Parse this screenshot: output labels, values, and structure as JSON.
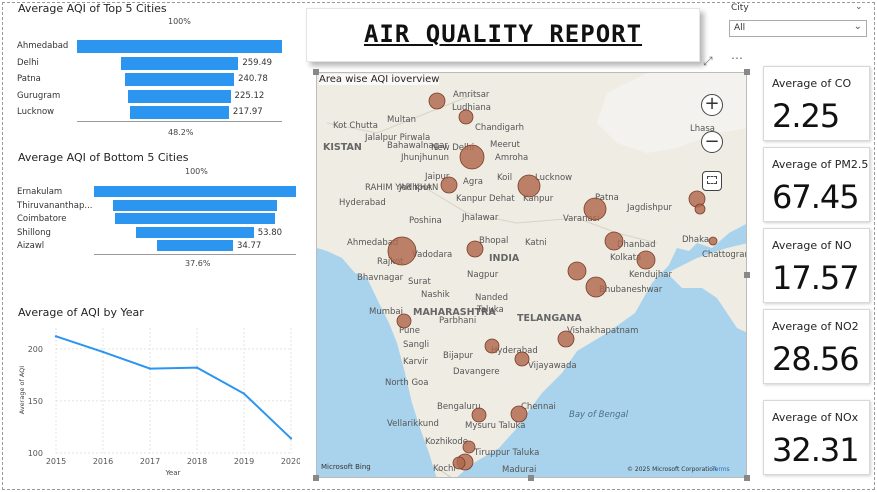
{
  "report_title": "AIR QUALITY REPORT",
  "top5": {
    "title": "Average AQI of Top 5 Cities",
    "top_pct": "100%",
    "bottom_pct": "48.2%",
    "items": [
      {
        "city": "Ahmedabad",
        "value": 452.12,
        "label": ""
      },
      {
        "city": "Delhi",
        "value": 259.49,
        "label": "259.49"
      },
      {
        "city": "Patna",
        "value": 240.78,
        "label": "240.78"
      },
      {
        "city": "Gurugram",
        "value": 225.12,
        "label": "225.12"
      },
      {
        "city": "Lucknow",
        "value": 217.97,
        "label": "217.97"
      }
    ]
  },
  "bottom5": {
    "title": "Average AQI of Bottom 5 Cities",
    "top_pct": "100%",
    "bottom_pct": "37.6%",
    "items": [
      {
        "city": "Ernakulam",
        "value": 92.5,
        "label": ""
      },
      {
        "city": "Thiruvananthap...",
        "value": 75.5,
        "label": ""
      },
      {
        "city": "Coimbatore",
        "value": 73.3,
        "label": ""
      },
      {
        "city": "Shillong",
        "value": 53.8,
        "label": "53.80"
      },
      {
        "city": "Aizawl",
        "value": 34.77,
        "label": "34.77"
      }
    ]
  },
  "chart_data": {
    "type": "line",
    "title": "Average of AQI by Year",
    "xlabel": "Year",
    "ylabel": "Average of AQI",
    "x": [
      2015,
      2016,
      2017,
      2018,
      2019,
      2020
    ],
    "values": [
      212,
      197,
      181,
      182,
      157,
      114
    ],
    "ylim": [
      100,
      220
    ],
    "yticks": [
      100,
      150,
      200
    ],
    "color": "#2b95f0"
  },
  "map": {
    "title": "Area wise AQI ioverview",
    "copyright": "© 2025 Microsoft Corporation",
    "terms": "Terms",
    "logo": "Microsoft Bing",
    "zoom_in": "+",
    "zoom_out": "−",
    "labels": {
      "amritsar": "Amritsar",
      "ludhiana": "Ludhiana",
      "kotkhata": "Kot Chutta",
      "multan": "Multan",
      "jalalpur": "Jalalpur Pirwala",
      "chandigarh": "Chandigarh",
      "meerut": "Meerut",
      "newdelhi": "New Delhi",
      "lhasa": "Lhasa",
      "kistan": "KISTAN",
      "bahawalnagar": "Bahawalnagar",
      "jhunjhunun": "Jhunjhunun",
      "amroha": "Amroha",
      "jaipur": "Jaipur",
      "agra": "Agra",
      "koil": "Koil",
      "lucknow": "Lucknow",
      "rahimyar": "RAHIM YAR KHAN",
      "jodhpur": "Jodhpur",
      "hyderabad_pk": "Hyderabad",
      "kanpur_dehat": "Kanpur Dehat",
      "kanpur": "Kanpur",
      "patna": "Patna",
      "jagdishpur": "Jagdishpur",
      "varanasi": "Varanasi",
      "poshina": "Poshina",
      "jhalawar": "Jhalawar",
      "ahmedabad": "Ahmedabad",
      "vadodara": "Vadodara",
      "bhopal": "Bhopal",
      "katni": "Katni",
      "dhanbad": "Dhanbad",
      "dhaka": "Dhaka",
      "chattogram": "Chattogram",
      "rajkot": "Rajkot",
      "india": "INDIA",
      "nagpur": "Nagpur",
      "bhavnagar": "Bhavnagar",
      "surat": "Surat",
      "kendujhar": "Kendujhar",
      "kolkata": "Kolkata",
      "nashik": "Nashik",
      "nanded": "Nanded",
      "bhubaneswar": "Bhubaneshwar",
      "mumbai": "Mumbai",
      "maharashtra": "MAHARASHTRA",
      "taluka": "Taluka",
      "pune": "Pune",
      "parbhani": "Parbhani",
      "vishakhapatnam": "Vishakhapatnam",
      "sangli": "Sangli",
      "telangana": "TELANGANA",
      "hyderabad": "Hyderabad",
      "karvir": "Karvir",
      "bijapur": "Bijapur",
      "vijayawada": "Vijayawada",
      "northgoa": "North Goa",
      "davangere": "Davangere",
      "bayofbengal": "Bay of Bengal",
      "bengaluru": "Bengaluru",
      "chennai": "Chennai",
      "vellarikkund": "Vellarikkund",
      "mysuru": "Mysuru Taluka",
      "kozhikode": "Kozhikode",
      "tiruppur": "Tiruppur Taluka",
      "kochi": "Kochi",
      "madurai": "Madurai"
    }
  },
  "filter": {
    "label": "City",
    "value": "All"
  },
  "cards": [
    {
      "label": "Average of CO",
      "value": "2.25"
    },
    {
      "label": "Average of PM2.5",
      "value": "67.45"
    },
    {
      "label": "Average of NO",
      "value": "17.57"
    },
    {
      "label": "Average of NO2",
      "value": "28.56"
    },
    {
      "label": "Average of NOx",
      "value": "32.31"
    }
  ],
  "icons": {
    "expand": "expand-icon",
    "more": "more-options-icon",
    "select": "lasso-select-icon"
  }
}
